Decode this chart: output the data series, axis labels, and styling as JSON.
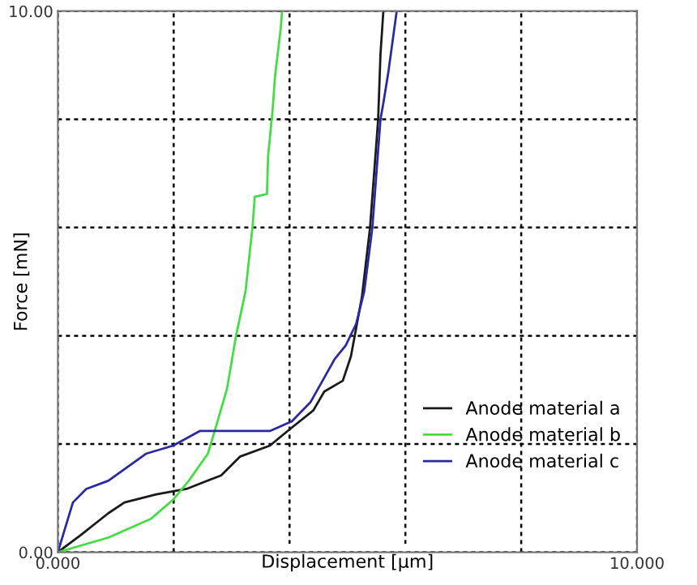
{
  "chart_data": {
    "type": "line",
    "xlabel": "Displacement [µm]",
    "ylabel": "Force [mN]",
    "xlim": [
      0,
      10
    ],
    "ylim": [
      0,
      10
    ],
    "xticks": [
      {
        "value": 0,
        "label": "0.000"
      },
      {
        "value": 2,
        "label": null
      },
      {
        "value": 4,
        "label": null
      },
      {
        "value": 6,
        "label": null
      },
      {
        "value": 8,
        "label": null
      },
      {
        "value": 10,
        "label": "10.000"
      }
    ],
    "yticks": [
      {
        "value": 0,
        "label": "0.00"
      },
      {
        "value": 2,
        "label": null
      },
      {
        "value": 4,
        "label": null
      },
      {
        "value": 6,
        "label": null
      },
      {
        "value": 8,
        "label": null
      },
      {
        "value": 10,
        "label": "10.00"
      }
    ],
    "grid": true,
    "legend": "lower right",
    "line_style": "solid",
    "marker": "none",
    "series": [
      {
        "name": "Anode material a",
        "color": "#1a1a1a",
        "x": [
          0,
          0.4,
          0.87,
          1.15,
          1.7,
          2.22,
          2.82,
          3.15,
          3.66,
          4.0,
          4.41,
          4.6,
          4.92,
          5.06,
          5.25,
          5.39,
          5.53,
          5.57,
          5.62
        ],
        "values": [
          0,
          0.32,
          0.72,
          0.92,
          1.07,
          1.17,
          1.42,
          1.77,
          1.97,
          2.27,
          2.62,
          2.97,
          3.17,
          3.62,
          4.72,
          6.0,
          8.0,
          9.2,
          10.0
        ]
      },
      {
        "name": "Anode material b",
        "color": "#44dd44",
        "x": [
          0,
          0.87,
          1.61,
          1.99,
          2.26,
          2.59,
          2.73,
          2.92,
          3.08,
          3.24,
          3.36,
          3.4,
          3.61,
          3.63,
          3.71,
          3.75,
          3.85,
          3.87
        ],
        "values": [
          0,
          0.27,
          0.62,
          0.97,
          1.32,
          1.82,
          2.32,
          3.02,
          4.02,
          4.82,
          6.0,
          6.57,
          6.62,
          7.32,
          8.2,
          8.8,
          9.7,
          10.0
        ]
      },
      {
        "name": "Anode material c",
        "color": "#2a2aa0",
        "x": [
          0,
          0.26,
          0.49,
          0.87,
          1.52,
          1.99,
          2.45,
          3.66,
          4.04,
          4.36,
          4.78,
          4.97,
          5.15,
          5.29,
          5.43,
          5.57,
          5.62,
          5.71,
          5.85
        ],
        "values": [
          0,
          0.92,
          1.17,
          1.32,
          1.82,
          1.97,
          2.24,
          2.24,
          2.42,
          2.77,
          3.57,
          3.82,
          4.22,
          4.82,
          6.0,
          8.0,
          8.3,
          8.9,
          10.0
        ]
      }
    ]
  }
}
